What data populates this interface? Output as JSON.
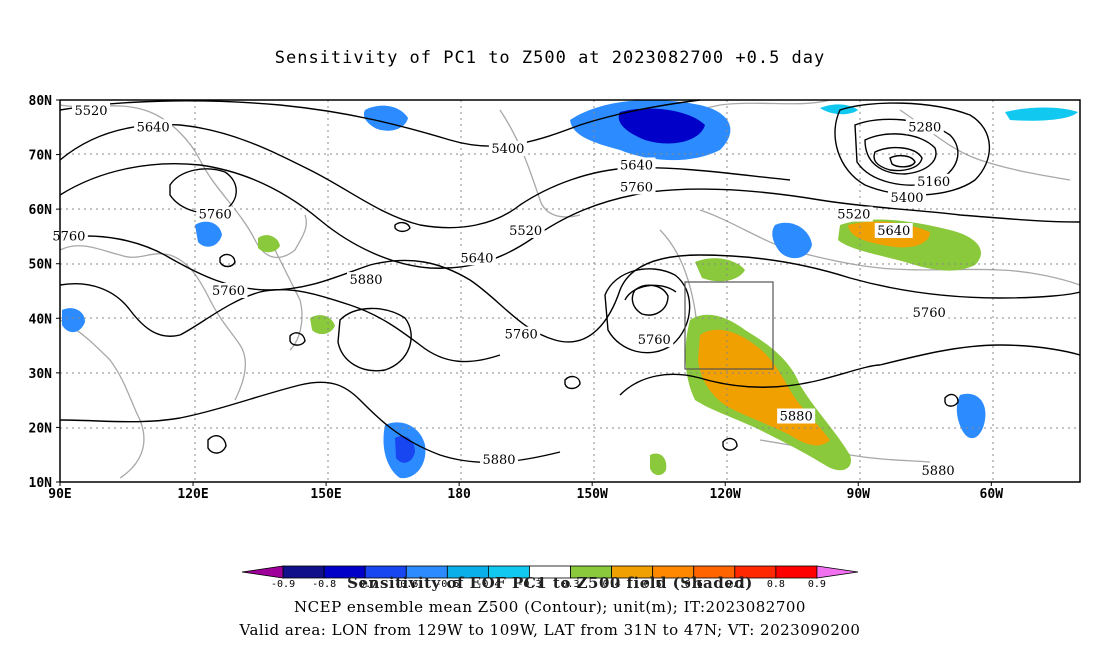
{
  "title": "Sensitivity of PC1 to Z500 at 2023082700 +0.5 day",
  "axes": {
    "lat_labels": [
      "80N",
      "70N",
      "60N",
      "50N",
      "40N",
      "30N",
      "20N",
      "10N"
    ],
    "lon_labels": [
      "90E",
      "120E",
      "150E",
      "180",
      "150W",
      "120W",
      "90W",
      "60W"
    ]
  },
  "contours": {
    "variable": "NCEP ensemble mean Z500",
    "labels": [
      {
        "text": "5520",
        "lon": 97,
        "lat": 78
      },
      {
        "text": "5640",
        "lon": 111,
        "lat": 75
      },
      {
        "text": "5400",
        "lon": -169,
        "lat": 71
      },
      {
        "text": "5280",
        "lon": -75,
        "lat": 75
      },
      {
        "text": "5160",
        "lon": -73,
        "lat": 65
      },
      {
        "text": "5400",
        "lon": -79,
        "lat": 62
      },
      {
        "text": "5520",
        "lon": -91,
        "lat": 59
      },
      {
        "text": "5640",
        "lon": -82,
        "lat": 56
      },
      {
        "text": "5640",
        "lon": -140,
        "lat": 68
      },
      {
        "text": "5760",
        "lon": -140,
        "lat": 64
      },
      {
        "text": "5760",
        "lon": 125,
        "lat": 59
      },
      {
        "text": "5520",
        "lon": -165,
        "lat": 56
      },
      {
        "text": "5760",
        "lon": 92,
        "lat": 55
      },
      {
        "text": "5640",
        "lon": -176,
        "lat": 51
      },
      {
        "text": "5760",
        "lon": 128,
        "lat": 45
      },
      {
        "text": "5880",
        "lon": 159,
        "lat": 47
      },
      {
        "text": "5760",
        "lon": -166,
        "lat": 37
      },
      {
        "text": "5760",
        "lon": -136,
        "lat": 36
      },
      {
        "text": "5880",
        "lon": -104,
        "lat": 22
      },
      {
        "text": "5880",
        "lon": -171,
        "lat": 14
      },
      {
        "text": "5880",
        "lon": -72,
        "lat": 12
      },
      {
        "text": "5760",
        "lon": -74,
        "lat": 41
      }
    ]
  },
  "valid_box": {
    "lon_min": -129,
    "lon_max": -109,
    "lat_min": 31,
    "lat_max": 47
  },
  "colorbar": {
    "label": "Sensitivity of EOF PC1 to Z500 field (Shaded)",
    "levels": [
      "-0.9",
      "-0.8",
      "-0.7",
      "-0.6",
      "-0.5",
      "-0.4",
      "-0.3",
      "0.3",
      "0.4",
      "0.5",
      "0.6",
      "0.7",
      "0.8",
      "0.9"
    ],
    "colors": [
      "#a0009a",
      "#10108a",
      "#0000c8",
      "#1846f0",
      "#2c8cff",
      "#0aaee8",
      "#10c8f0",
      "#ffffff",
      "#8ac83c",
      "#f0a000",
      "#ff8800",
      "#ff6400",
      "#ff2800",
      "#ff0000",
      "#f070f0"
    ]
  },
  "captions": {
    "line1": "NCEP ensemble mean Z500 (Contour); unit(m); IT:2023082700",
    "line2": "Valid area: LON from 129W to 109W, LAT from 31N to 47N; VT: 2023090200"
  }
}
